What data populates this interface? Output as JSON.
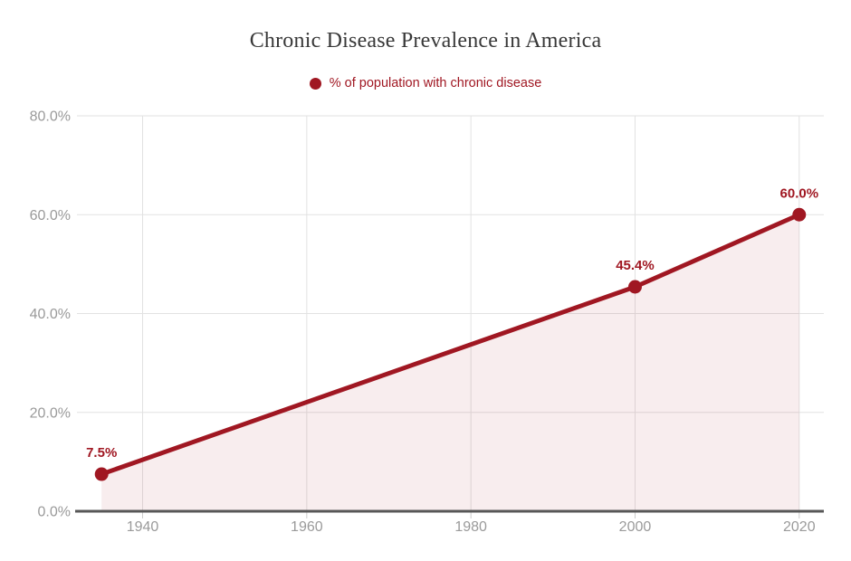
{
  "chart": {
    "title": "Chronic Disease Prevalence in America",
    "legend": {
      "icon": "legend-dot-icon",
      "label": "% of population with chronic disease"
    }
  },
  "chart_data": {
    "type": "area",
    "title": "Chronic Disease Prevalence in America",
    "xlabel": "",
    "ylabel": "",
    "legend_position": "top",
    "grid": true,
    "xlim": [
      1932,
      2023
    ],
    "ylim": [
      0,
      80
    ],
    "series": [
      {
        "name": "% of population with chronic disease",
        "points": [
          {
            "x": 1935,
            "y": 7.5,
            "label": "7.5%"
          },
          {
            "x": 2000,
            "y": 45.4,
            "label": "45.4%"
          },
          {
            "x": 2020,
            "y": 60.0,
            "label": "60.0%"
          }
        ]
      }
    ],
    "x_ticks": [
      {
        "value": 1940,
        "label": "1940"
      },
      {
        "value": 1960,
        "label": "1960"
      },
      {
        "value": 1980,
        "label": "1980"
      },
      {
        "value": 2000,
        "label": "2000"
      },
      {
        "value": 2020,
        "label": "2020"
      }
    ],
    "y_ticks": [
      {
        "value": 0,
        "label": "0.0%"
      },
      {
        "value": 20,
        "label": "20.0%"
      },
      {
        "value": 40,
        "label": "40.0%"
      },
      {
        "value": 60,
        "label": "60.0%"
      },
      {
        "value": 80,
        "label": "80.0%"
      }
    ],
    "colors": {
      "line": "#a01722",
      "marker": "#a01722",
      "fill": "rgba(160,23,34,0.08)",
      "grid": "#e2e2e2",
      "tick_stub": "#cccccc",
      "axis": "#575757",
      "tick_text": "#9a9a9a",
      "label_text": "#a01722",
      "legend_text": "#a01722",
      "title_text": "#383838"
    }
  }
}
